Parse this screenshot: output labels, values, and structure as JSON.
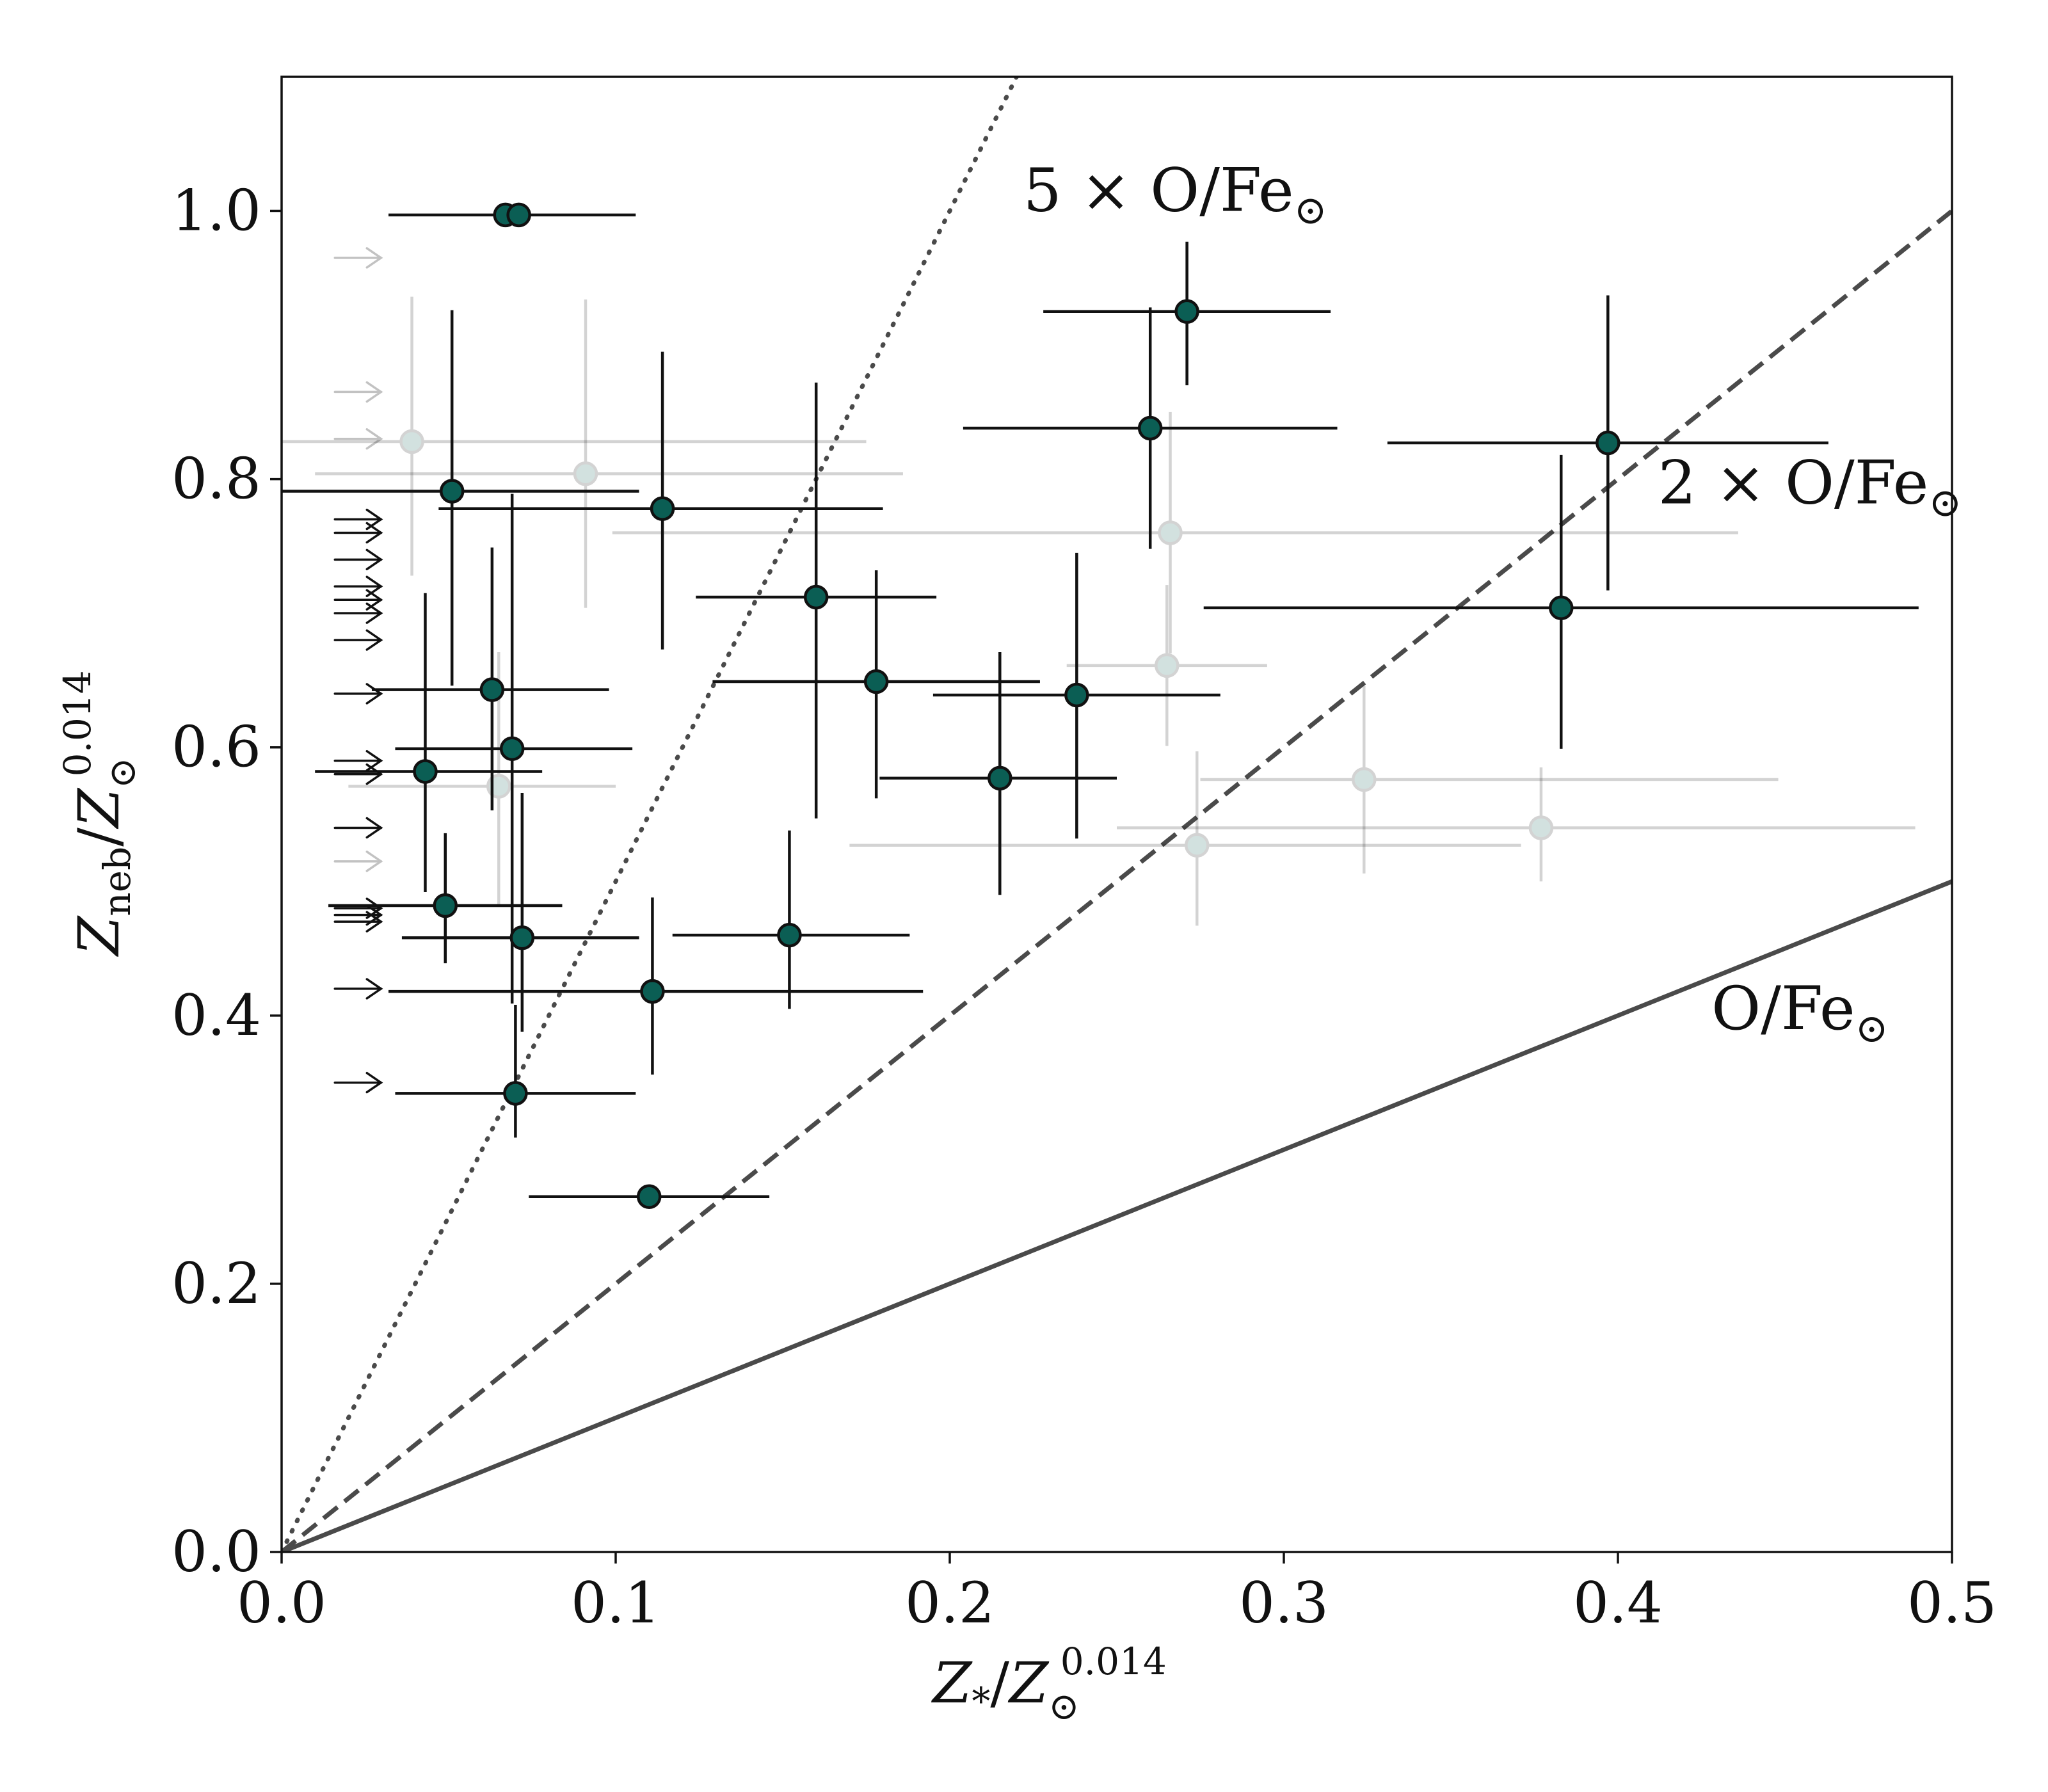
{
  "chart_data": {
    "type": "scatter",
    "xlabel": "Z*/Z⊙0.014",
    "ylabel": "Zneb/Z⊙0.014",
    "xlabel_parts": {
      "sym": "Z",
      "sub1": "*",
      "slash": "/Z",
      "sub2": "⊙",
      "sup": "0.014"
    },
    "ylabel_parts": {
      "sym": "Z",
      "sub1": "neb",
      "slash": "/Z",
      "sub2": "⊙",
      "sup": "0.014"
    },
    "xlim": [
      0,
      0.5
    ],
    "ylim": [
      0,
      1.1
    ],
    "xticks": [
      0.0,
      0.1,
      0.2,
      0.3,
      0.4,
      0.5
    ],
    "xtick_labels": [
      "0.0",
      "0.1",
      "0.2",
      "0.3",
      "0.4",
      "0.5"
    ],
    "yticks": [
      0.0,
      0.2,
      0.4,
      0.6,
      0.8,
      1.0
    ],
    "ytick_labels": [
      "0.0",
      "0.2",
      "0.4",
      "0.6",
      "0.8",
      "1.0"
    ],
    "grid": false,
    "reference_lines": [
      {
        "name": "O/Fe⊙",
        "slope": 1,
        "style": "solid",
        "color": "#4a4a4a",
        "label_main": "O/Fe",
        "label_sub": "⊙",
        "label_at": [
          0.428,
          0.39
        ]
      },
      {
        "name": "2 × O/Fe⊙",
        "slope": 2,
        "style": "dashed",
        "color": "#4a4a4a",
        "label_main": "2 × O/Fe",
        "label_sub": "⊙",
        "label_at": [
          0.412,
          0.782
        ]
      },
      {
        "name": "5 × O/Fe⊙",
        "slope": 5,
        "style": "dotted",
        "color": "#4a4a4a",
        "label_main": "5 × O/Fe",
        "label_sub": "⊙",
        "label_at": [
          0.222,
          1.0
        ]
      }
    ],
    "marker_color": "#0b5e54",
    "series": [
      {
        "name": "measured",
        "points": [
          {
            "x": 0.067,
            "y": 0.997,
            "xerr": [
              0.035,
              0.039
            ],
            "yerr": [
              0,
              0
            ]
          },
          {
            "x": 0.071,
            "y": 0.997,
            "xerr": [
              0.0,
              0.0
            ],
            "yerr": [
              0,
              0
            ]
          },
          {
            "x": 0.271,
            "y": 0.925,
            "xerr": [
              0.043,
              0.043
            ],
            "yerr": [
              0.055,
              0.052
            ]
          },
          {
            "x": 0.26,
            "y": 0.838,
            "xerr": [
              0.056,
              0.056
            ],
            "yerr": [
              0.09,
              0.09
            ]
          },
          {
            "x": 0.397,
            "y": 0.827,
            "xerr": [
              0.066,
              0.066
            ],
            "yerr": [
              0.11,
              0.11
            ]
          },
          {
            "x": 0.051,
            "y": 0.791,
            "xerr": [
              0.051,
              0.056
            ],
            "yerr": [
              0.145,
              0.135
            ]
          },
          {
            "x": 0.114,
            "y": 0.778,
            "xerr": [
              0.067,
              0.066
            ],
            "yerr": [
              0.105,
              0.117
            ]
          },
          {
            "x": 0.16,
            "y": 0.712,
            "xerr": [
              0.036,
              0.036
            ],
            "yerr": [
              0.165,
              0.16
            ]
          },
          {
            "x": 0.383,
            "y": 0.704,
            "xerr": [
              0.107,
              0.107
            ],
            "yerr": [
              0.105,
              0.114
            ]
          },
          {
            "x": 0.178,
            "y": 0.649,
            "xerr": [
              0.049,
              0.049
            ],
            "yerr": [
              0.087,
              0.083
            ]
          },
          {
            "x": 0.063,
            "y": 0.643,
            "xerr": [
              0.036,
              0.035
            ],
            "yerr": [
              0.09,
              0.106
            ]
          },
          {
            "x": 0.238,
            "y": 0.639,
            "xerr": [
              0.043,
              0.043
            ],
            "yerr": [
              0.107,
              0.106
            ]
          },
          {
            "x": 0.069,
            "y": 0.599,
            "xerr": [
              0.035,
              0.036
            ],
            "yerr": [
              0.19,
              0.19
            ]
          },
          {
            "x": 0.043,
            "y": 0.582,
            "xerr": [
              0.033,
              0.035
            ],
            "yerr": [
              0.09,
              0.133
            ]
          },
          {
            "x": 0.215,
            "y": 0.577,
            "xerr": [
              0.036,
              0.035
            ],
            "yerr": [
              0.087,
              0.094
            ]
          },
          {
            "x": 0.049,
            "y": 0.482,
            "xerr": [
              0.035,
              0.035
            ],
            "yerr": [
              0.043,
              0.054
            ]
          },
          {
            "x": 0.072,
            "y": 0.458,
            "xerr": [
              0.036,
              0.035
            ],
            "yerr": [
              0.07,
              0.108
            ]
          },
          {
            "x": 0.152,
            "y": 0.46,
            "xerr": [
              0.035,
              0.036
            ],
            "yerr": [
              0.055,
              0.078
            ]
          },
          {
            "x": 0.111,
            "y": 0.418,
            "xerr": [
              0.079,
              0.081
            ],
            "yerr": [
              0.062,
              0.07
            ]
          },
          {
            "x": 0.07,
            "y": 0.342,
            "xerr": [
              0.036,
              0.036
            ],
            "yerr": [
              0.033,
              0.066
            ]
          },
          {
            "x": 0.11,
            "y": 0.265,
            "xerr": [
              0.036,
              0.036
            ],
            "yerr": [
              0,
              0
            ]
          }
        ]
      },
      {
        "name": "faded",
        "alpha": 0.18,
        "points": [
          {
            "x": 0.039,
            "y": 0.828,
            "xerr": [
              0.039,
              0.136
            ],
            "yerr": [
              0.1,
              0.108
            ]
          },
          {
            "x": 0.091,
            "y": 0.804,
            "xerr": [
              0.081,
              0.095
            ],
            "yerr": [
              0.1,
              0.13
            ]
          },
          {
            "x": 0.266,
            "y": 0.76,
            "xerr": [
              0.167,
              0.17
            ],
            "yerr": [
              0.09,
              0.09
            ]
          },
          {
            "x": 0.265,
            "y": 0.661,
            "xerr": [
              0.03,
              0.03
            ],
            "yerr": [
              0.06,
              0.06
            ]
          },
          {
            "x": 0.065,
            "y": 0.571,
            "xerr": [
              0.045,
              0.035
            ],
            "yerr": [
              0.09,
              0.1
            ]
          },
          {
            "x": 0.324,
            "y": 0.576,
            "xerr": [
              0.049,
              0.124
            ],
            "yerr": [
              0.07,
              0.07
            ]
          },
          {
            "x": 0.274,
            "y": 0.527,
            "xerr": [
              0.104,
              0.097
            ],
            "yerr": [
              0.06,
              0.07
            ]
          },
          {
            "x": 0.377,
            "y": 0.54,
            "xerr": [
              0.127,
              0.112
            ],
            "yerr": [
              0.04,
              0.045
            ]
          }
        ]
      },
      {
        "name": "upper_limits",
        "marker": "arrow-right",
        "x": 0.015,
        "y": [
          0.77,
          0.76,
          0.74,
          0.72,
          0.7,
          0.71,
          0.68,
          0.64,
          0.59,
          0.58,
          0.54,
          0.48,
          0.475,
          0.47,
          0.42,
          0.35
        ]
      },
      {
        "name": "upper_limits_faded",
        "marker": "arrow-right",
        "alpha": 0.25,
        "x": 0.015,
        "y": [
          0.965,
          0.865,
          0.83,
          0.515
        ]
      }
    ]
  }
}
